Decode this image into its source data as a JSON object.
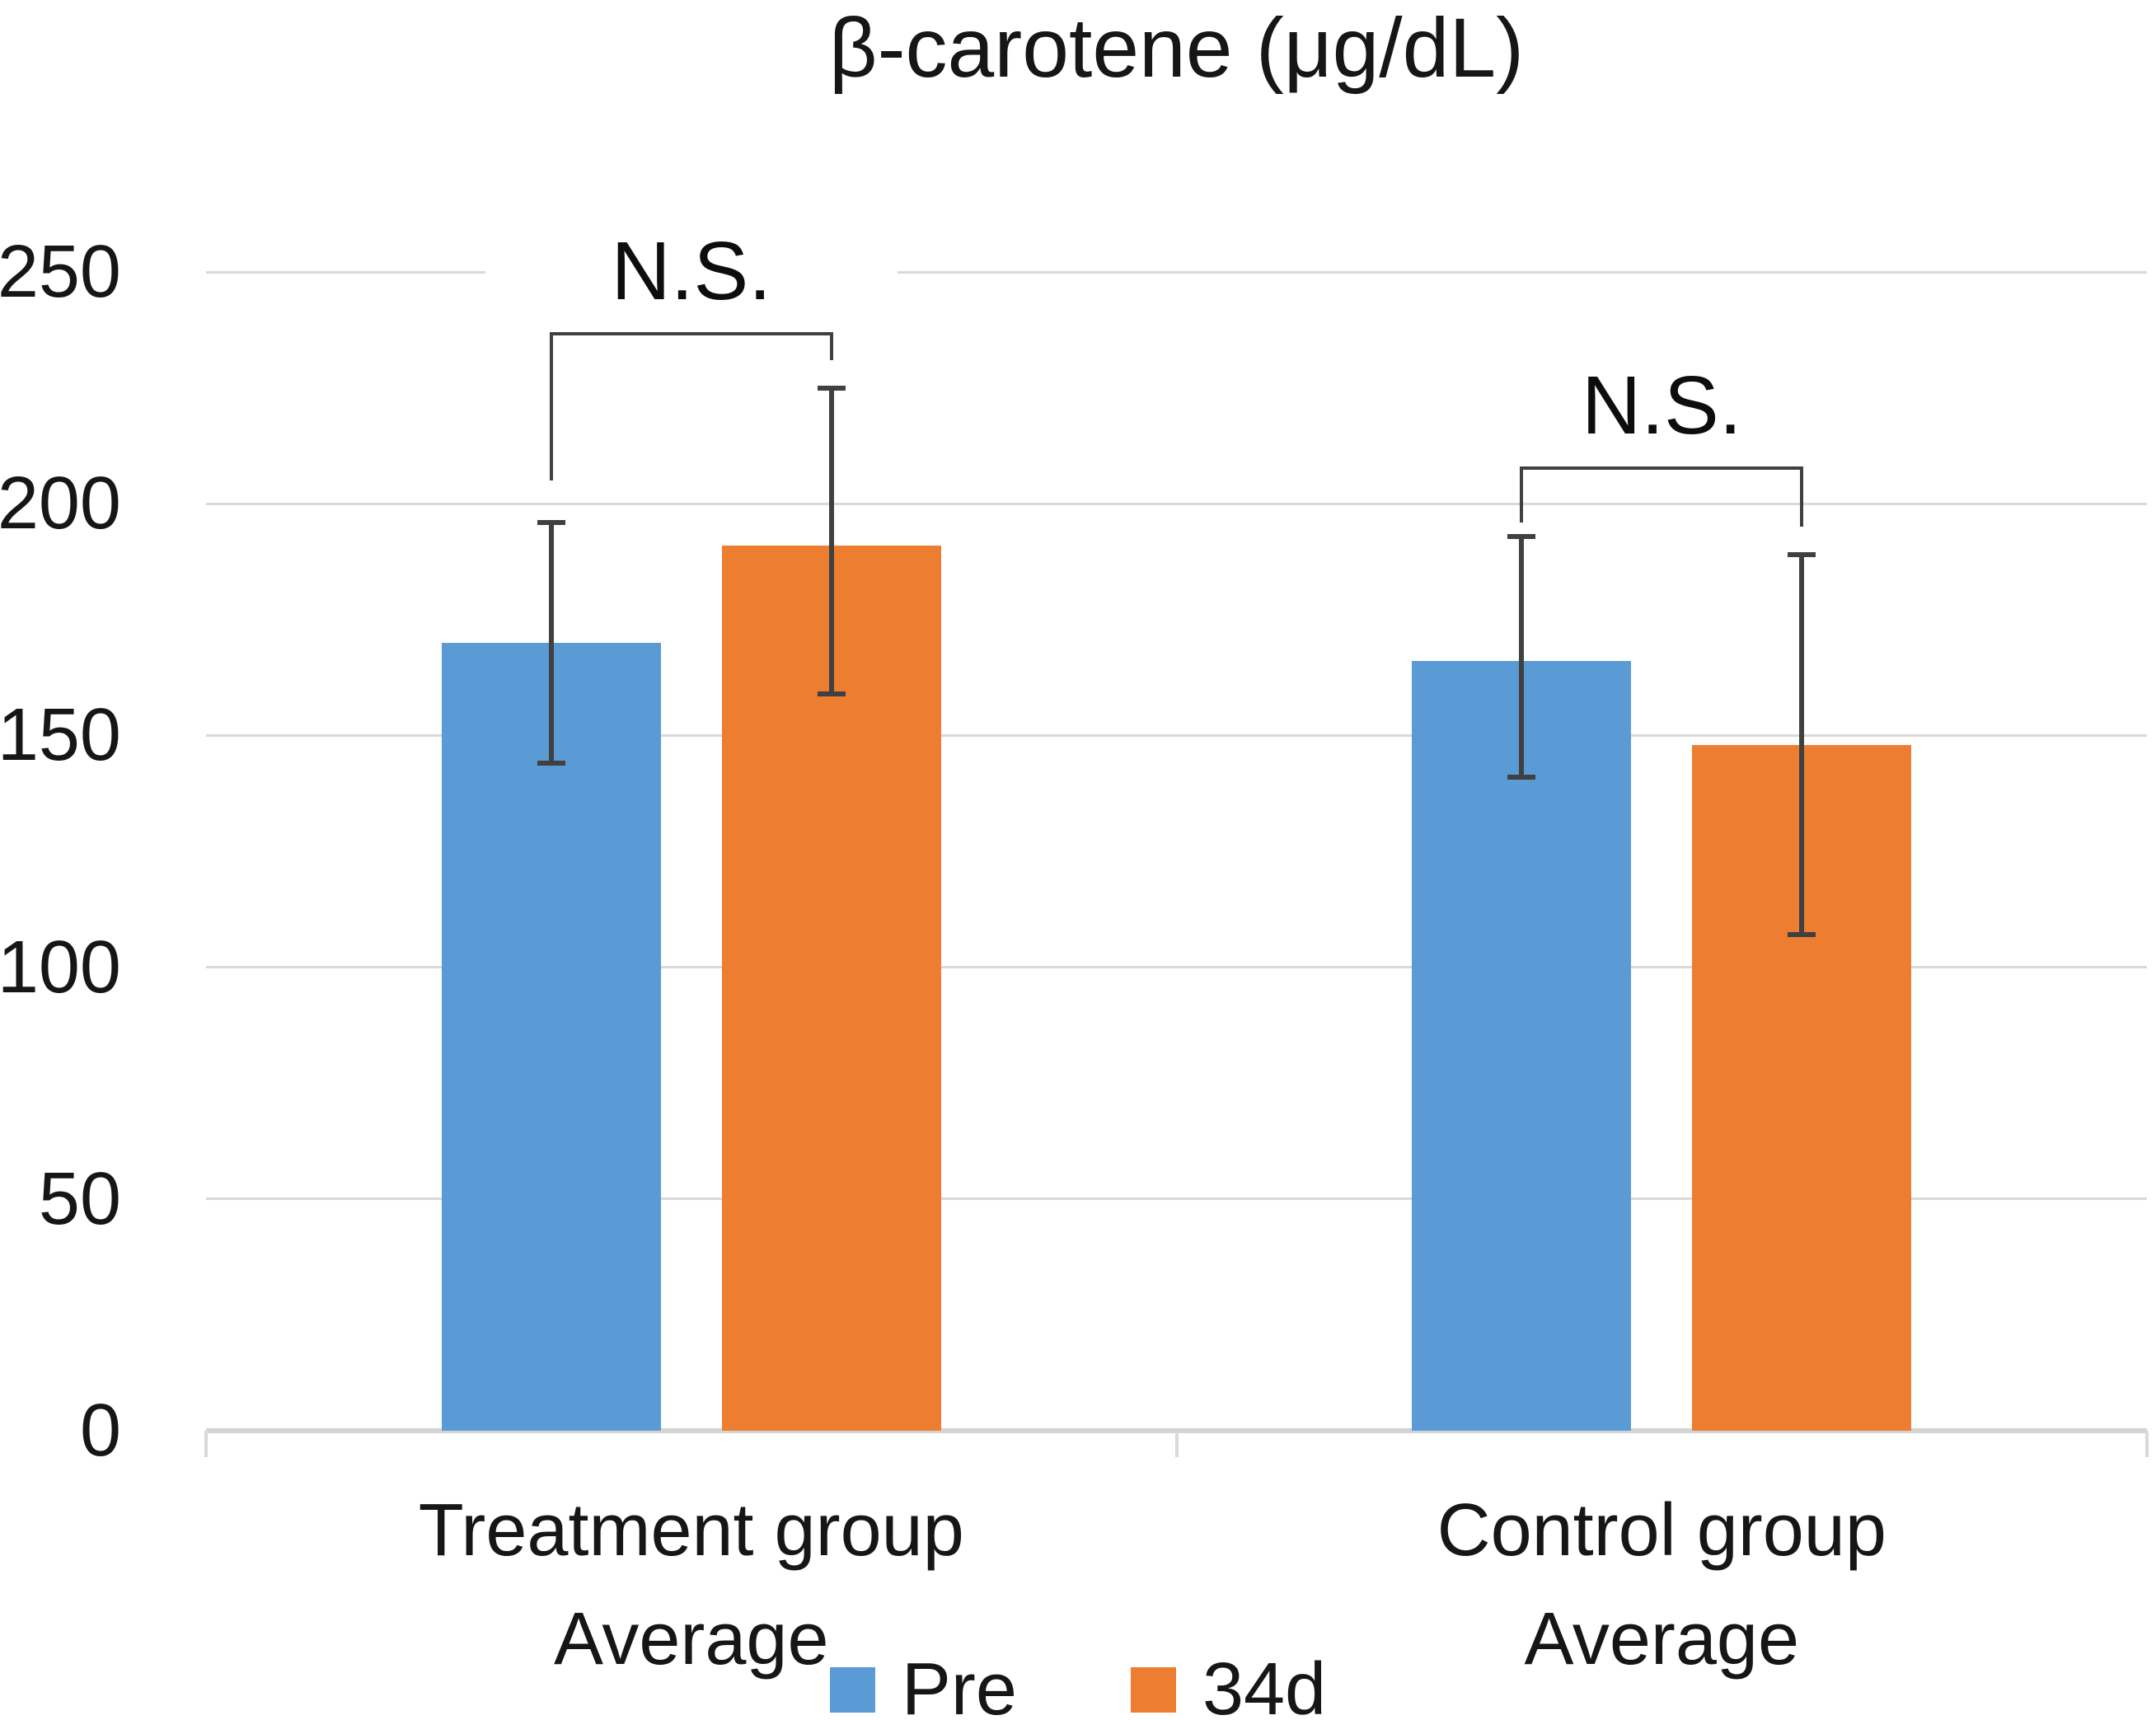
{
  "title": "β-carotene (μg/dL)",
  "chart_data": {
    "type": "bar",
    "title": "β-carotene (μg/dL)",
    "categories": [
      [
        "Treatment group",
        "Average"
      ],
      [
        "Control group",
        "Average"
      ]
    ],
    "category_slugs": [
      "treatment",
      "control"
    ],
    "series": [
      {
        "name": "Pre",
        "slug": "pre",
        "color": "#5B9BD5",
        "values": [
          170,
          166
        ],
        "error_low": [
          144,
          141
        ],
        "error_high": [
          196,
          193
        ]
      },
      {
        "name": "34d",
        "slug": "34d",
        "color": "#ED7D31",
        "values": [
          191,
          148
        ],
        "error_low": [
          159,
          107
        ],
        "error_high": [
          225,
          189
        ]
      }
    ],
    "ylabel": "",
    "xlabel": "",
    "ylim": [
      0,
      250
    ],
    "yticks": [
      0,
      50,
      100,
      150,
      200,
      250
    ],
    "grid": true,
    "legend_position": "bottom",
    "error_bar_color": "#404040",
    "gridline_color": "#d9d9d9",
    "annotations": [
      {
        "label": "N.S.",
        "group": 0,
        "bracket_y": 237,
        "left_drop_to": 205,
        "right_drop_to": 231
      },
      {
        "label": "N.S.",
        "group": 1,
        "bracket_y": 208,
        "left_drop_to": 196,
        "right_drop_to": 195
      }
    ]
  }
}
